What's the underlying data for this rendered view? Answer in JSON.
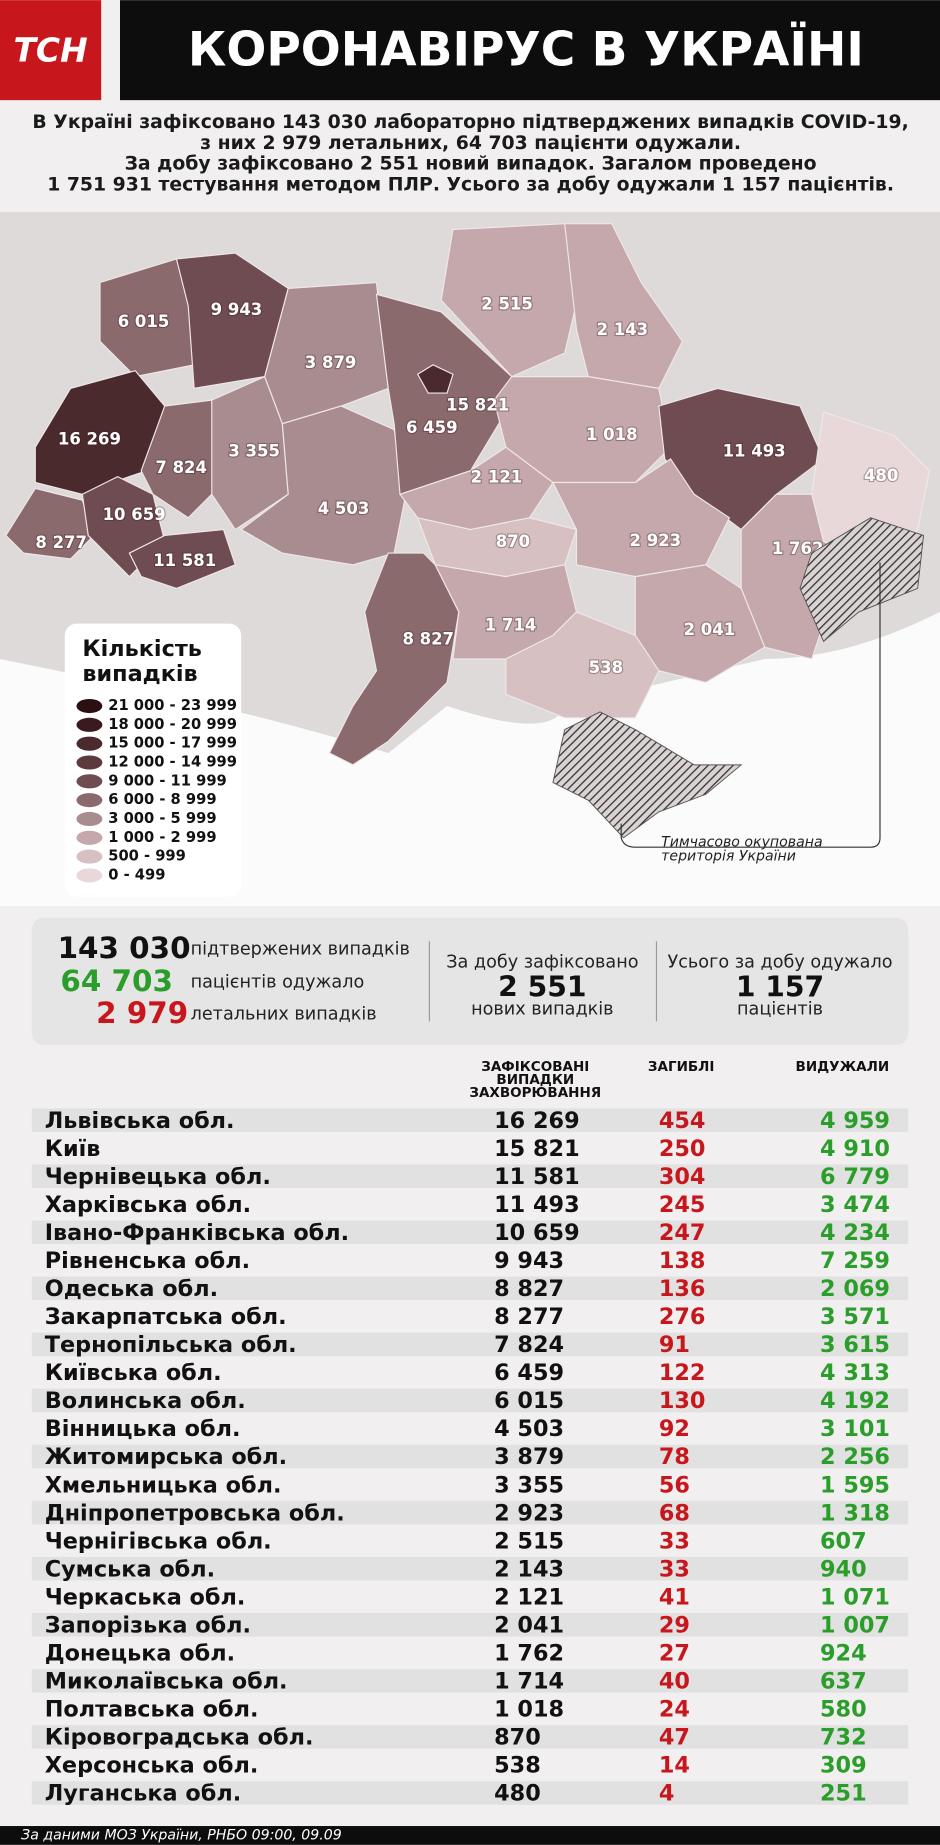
{
  "header": {
    "logo": "ТСН",
    "title": "КОРОНАВІРУС В УКРАЇНІ"
  },
  "intro": {
    "lines": [
      "В Україні зафіксовано 143 030 лабораторно підтверджених випадків COVID-19,",
      "з них 2 979 летальних, 64 703 пацієнти одужали.",
      "За добу зафіксовано 2 551 новий випадок. Загалом проведено",
      "1 751 931 тестування методом ПЛР. Усього за добу одужали 1 157 пацієнтів."
    ]
  },
  "legend": {
    "title": [
      "Кількість",
      "випадків"
    ],
    "items": [
      {
        "label": "21 000 - 23 999",
        "color": "#2b0f12"
      },
      {
        "label": "18 000 - 20 999",
        "color": "#3a1a1e"
      },
      {
        "label": "15 000 - 17 999",
        "color": "#4b2a2e"
      },
      {
        "label": "12 000 - 14 999",
        "color": "#5d3a3e"
      },
      {
        "label": "9 000 - 11 999",
        "color": "#6f4c51"
      },
      {
        "label": "6 000 - 8 999",
        "color": "#8b6a6e"
      },
      {
        "label": "3 000 - 5 999",
        "color": "#a98c90"
      },
      {
        "label": "1 000 - 2 999",
        "color": "#c4a8ab"
      },
      {
        "label": "500 - 999",
        "color": "#d6c0c2"
      },
      {
        "label": "0 - 499",
        "color": "#e8d8d9"
      }
    ]
  },
  "map_note": [
    "Тимчасово окупована",
    "територія України"
  ],
  "summary": {
    "confirmed": "143 030",
    "confirmed_label": "підтвержених випадків",
    "recovered": "64 703",
    "recovered_label": "пацієнтів одужало",
    "deaths": "2 979",
    "deaths_label": "летальних випадків",
    "day_title": "За добу зафіксовано",
    "day_value": "2 551",
    "day_label": "нових випадків",
    "rec_title": "Усього за добу одужало",
    "rec_value": "1 157",
    "rec_label": "пацієнтів"
  },
  "table": {
    "headers": {
      "cases": [
        "ЗАФІКСОВАНІ",
        "ВИПАДКИ",
        "ЗАХВОРЮВАННЯ"
      ],
      "deaths": "ЗАГИБЛІ",
      "recovered": "ВИДУЖАЛИ"
    },
    "rows": [
      [
        "Львівська обл.",
        "16 269",
        "454",
        "4 959"
      ],
      [
        "Київ",
        "15 821",
        "250",
        "4 910"
      ],
      [
        "Чернівецька обл.",
        "11 581",
        "304",
        "6 779"
      ],
      [
        "Харківська обл.",
        "11 493",
        "245",
        "3 474"
      ],
      [
        "Івано-Франківська обл.",
        "10 659",
        "247",
        "4 234"
      ],
      [
        "Рівненська обл.",
        "9 943",
        "138",
        "7 259"
      ],
      [
        "Одеська обл.",
        "8 827",
        "136",
        "2 069"
      ],
      [
        "Закарпатська обл.",
        "8 277",
        "276",
        "3 571"
      ],
      [
        "Тернопільська обл.",
        "7 824",
        "91",
        "3 615"
      ],
      [
        "Київська обл.",
        "6 459",
        "122",
        "4 313"
      ],
      [
        "Волинська обл.",
        "6 015",
        "130",
        "4 192"
      ],
      [
        "Вінницька обл.",
        "4 503",
        "92",
        "3 101"
      ],
      [
        "Житомирська обл.",
        "3 879",
        "78",
        "2 256"
      ],
      [
        "Хмельницька обл.",
        "3 355",
        "56",
        "1 595"
      ],
      [
        "Дніпропетровська обл.",
        "2 923",
        "68",
        "1 318"
      ],
      [
        "Чернігівська обл.",
        "2 515",
        "33",
        "607"
      ],
      [
        "Сумська обл.",
        "2 143",
        "33",
        "940"
      ],
      [
        "Черкаська обл.",
        "2 121",
        "41",
        "1 071"
      ],
      [
        "Запорізька обл.",
        "2 041",
        "29",
        "1 007"
      ],
      [
        "Донецька обл.",
        "1 762",
        "27",
        "924"
      ],
      [
        "Миколаївська обл.",
        "1 714",
        "40",
        "637"
      ],
      [
        "Полтавська обл.",
        "1 018",
        "24",
        "580"
      ],
      [
        "Кіровоградська обл.",
        "870",
        "47",
        "732"
      ],
      [
        "Херсонська обл.",
        "538",
        "14",
        "309"
      ],
      [
        "Луганська обл.",
        "480",
        "4",
        "251"
      ]
    ]
  },
  "footer": "За даними МОЗ України, РНБО  09:00, 09.09"
}
